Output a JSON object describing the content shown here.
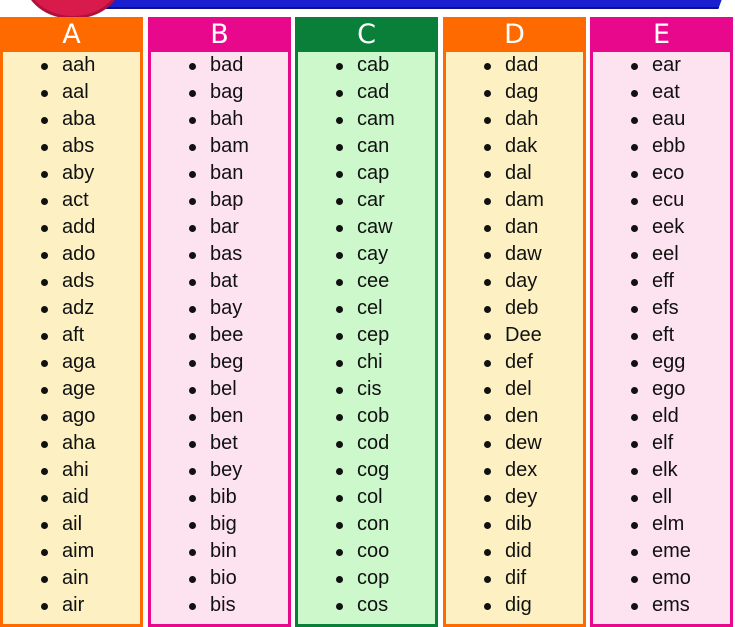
{
  "colors": {
    "orange": "#ff6a00",
    "magenta": "#e8088c",
    "green": "#0a7f3a",
    "banner": "#1a1fd0"
  },
  "columns": [
    {
      "letter": "A",
      "header_color": "#ff6a00",
      "body_color": "#fdf1c4",
      "words": [
        "aah",
        "aal",
        "aba",
        "abs",
        "aby",
        "act",
        "add",
        "ado",
        "ads",
        "adz",
        "aft",
        "aga",
        "age",
        "ago",
        "aha",
        "ahi",
        "aid",
        "ail",
        "aim",
        "ain",
        "air"
      ]
    },
    {
      "letter": "B",
      "header_color": "#e8088c",
      "body_color": "#fde2f0",
      "words": [
        "bad",
        "bag",
        "bah",
        "bam",
        "ban",
        "bap",
        "bar",
        "bas",
        "bat",
        "bay",
        "bee",
        "beg",
        "bel",
        "ben",
        "bet",
        "bey",
        "bib",
        "big",
        "bin",
        "bio",
        "bis"
      ]
    },
    {
      "letter": "C",
      "header_color": "#0a7f3a",
      "body_color": "#ccf8cc",
      "words": [
        "cab",
        "cad",
        "cam",
        "can",
        "cap",
        "car",
        "caw",
        "cay",
        "cee",
        "cel",
        "cep",
        "chi",
        "cis",
        "cob",
        "cod",
        "cog",
        "col",
        "con",
        "coo",
        "cop",
        "cos"
      ]
    },
    {
      "letter": "D",
      "header_color": "#ff6a00",
      "body_color": "#fdf1c4",
      "words": [
        "dad",
        "dag",
        "dah",
        "dak",
        "dal",
        "dam",
        "dan",
        "daw",
        "day",
        "deb",
        "Dee",
        "def",
        "del",
        "den",
        "dew",
        "dex",
        "dey",
        "dib",
        "did",
        "dif",
        "dig"
      ]
    },
    {
      "letter": "E",
      "header_color": "#e8088c",
      "body_color": "#fde2f0",
      "words": [
        "ear",
        "eat",
        "eau",
        "ebb",
        "eco",
        "ecu",
        "eek",
        "eel",
        "eff",
        "efs",
        "eft",
        "egg",
        "ego",
        "eld",
        "elf",
        "elk",
        "ell",
        "elm",
        "eme",
        "emo",
        "ems"
      ]
    }
  ]
}
